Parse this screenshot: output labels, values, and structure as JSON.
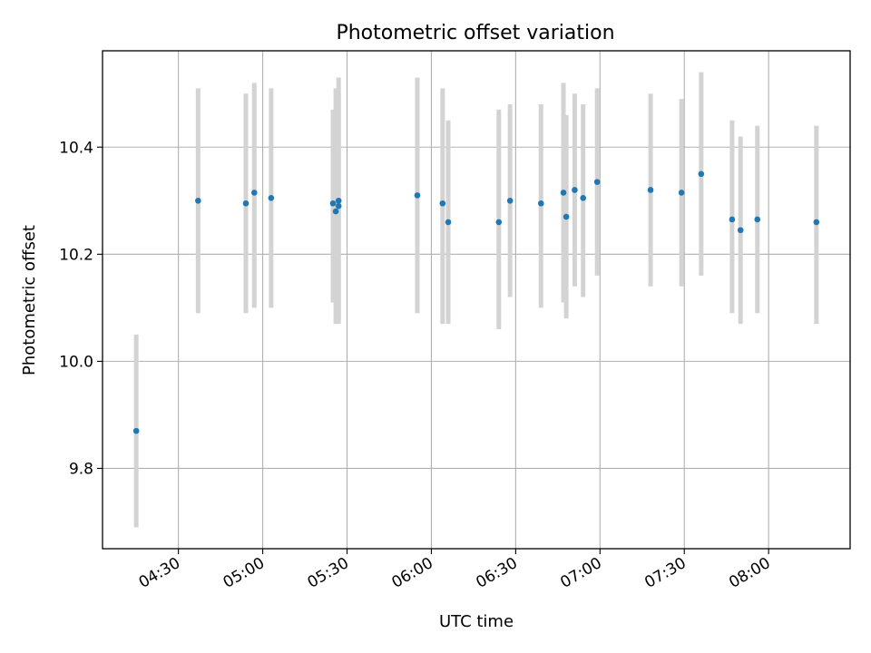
{
  "chart_data": {
    "type": "scatter",
    "title": "Photometric offset variation",
    "xlabel": "UTC time",
    "ylabel": "Photometric offset",
    "x_ticks": [
      "04:30",
      "05:00",
      "05:30",
      "06:00",
      "06:30",
      "07:00",
      "07:30",
      "08:00"
    ],
    "y_ticks": [
      "9.8",
      "10.0",
      "10.2",
      "10.4"
    ],
    "x_range": [
      "04:03",
      "08:29"
    ],
    "y_range": [
      9.65,
      10.58
    ],
    "grid": true,
    "marker_color": "#1f77b4",
    "errorbar_color": "#d3d3d3",
    "points": [
      {
        "t": "04:15",
        "y": 9.87,
        "lo": 9.69,
        "hi": 10.05
      },
      {
        "t": "04:37",
        "y": 10.3,
        "lo": 10.09,
        "hi": 10.51
      },
      {
        "t": "04:54",
        "y": 10.295,
        "lo": 10.09,
        "hi": 10.5
      },
      {
        "t": "04:57",
        "y": 10.315,
        "lo": 10.1,
        "hi": 10.52
      },
      {
        "t": "05:03",
        "y": 10.305,
        "lo": 10.1,
        "hi": 10.51
      },
      {
        "t": "05:25",
        "y": 10.295,
        "lo": 10.11,
        "hi": 10.47
      },
      {
        "t": "05:26",
        "y": 10.28,
        "lo": 10.07,
        "hi": 10.51
      },
      {
        "t": "05:27",
        "y": 10.3,
        "lo": 10.07,
        "hi": 10.53
      },
      {
        "t": "05:27",
        "y": 10.29,
        "lo": 10.08,
        "hi": 10.5
      },
      {
        "t": "05:55",
        "y": 10.31,
        "lo": 10.09,
        "hi": 10.53
      },
      {
        "t": "06:04",
        "y": 10.295,
        "lo": 10.07,
        "hi": 10.51
      },
      {
        "t": "06:06",
        "y": 10.26,
        "lo": 10.07,
        "hi": 10.45
      },
      {
        "t": "06:24",
        "y": 10.26,
        "lo": 10.06,
        "hi": 10.47
      },
      {
        "t": "06:28",
        "y": 10.3,
        "lo": 10.12,
        "hi": 10.48
      },
      {
        "t": "06:39",
        "y": 10.295,
        "lo": 10.1,
        "hi": 10.48
      },
      {
        "t": "06:47",
        "y": 10.315,
        "lo": 10.11,
        "hi": 10.52
      },
      {
        "t": "06:48",
        "y": 10.27,
        "lo": 10.08,
        "hi": 10.46
      },
      {
        "t": "06:51",
        "y": 10.32,
        "lo": 10.14,
        "hi": 10.5
      },
      {
        "t": "06:54",
        "y": 10.305,
        "lo": 10.12,
        "hi": 10.48
      },
      {
        "t": "06:59",
        "y": 10.335,
        "lo": 10.16,
        "hi": 10.51
      },
      {
        "t": "07:18",
        "y": 10.32,
        "lo": 10.14,
        "hi": 10.5
      },
      {
        "t": "07:29",
        "y": 10.315,
        "lo": 10.14,
        "hi": 10.49
      },
      {
        "t": "07:36",
        "y": 10.35,
        "lo": 10.16,
        "hi": 10.54
      },
      {
        "t": "07:47",
        "y": 10.265,
        "lo": 10.09,
        "hi": 10.45
      },
      {
        "t": "07:50",
        "y": 10.245,
        "lo": 10.07,
        "hi": 10.42
      },
      {
        "t": "07:56",
        "y": 10.265,
        "lo": 10.09,
        "hi": 10.44
      },
      {
        "t": "08:17",
        "y": 10.26,
        "lo": 10.07,
        "hi": 10.44
      }
    ]
  }
}
